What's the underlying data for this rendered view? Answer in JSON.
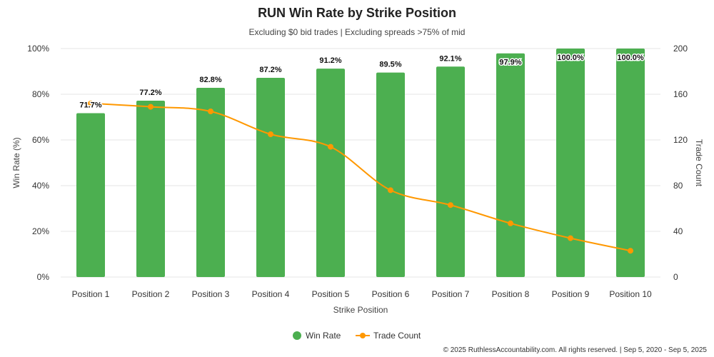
{
  "chart_data": {
    "type": "bar",
    "title": "RUN Win Rate by Strike Position",
    "subtitle": "Excluding $0 bid trades | Excluding spreads >75% of mid",
    "xlabel": "Strike Position",
    "ylabel": "Win Rate (%)",
    "y2label": "Trade Count",
    "ylim": [
      0,
      100
    ],
    "y2lim": [
      0,
      200
    ],
    "yticks": [
      "0%",
      "20%",
      "40%",
      "60%",
      "80%",
      "100%"
    ],
    "y2ticks": [
      "0",
      "40",
      "80",
      "120",
      "160",
      "200"
    ],
    "categories": [
      "Position 1",
      "Position 2",
      "Position 3",
      "Position 4",
      "Position 5",
      "Position 6",
      "Position 7",
      "Position 8",
      "Position 9",
      "Position 10"
    ],
    "series": [
      {
        "name": "Win Rate",
        "type": "bar",
        "axis": "left",
        "color": "#4caf50",
        "values": [
          71.7,
          77.2,
          82.8,
          87.2,
          91.2,
          89.5,
          92.1,
          97.9,
          100.0,
          100.0
        ],
        "labels": [
          "71.7%",
          "77.2%",
          "82.8%",
          "87.2%",
          "91.2%",
          "89.5%",
          "92.1%",
          "97.9%",
          "100.0%",
          "100.0%"
        ]
      },
      {
        "name": "Trade Count",
        "type": "line",
        "axis": "right",
        "color": "#ff9800",
        "values": [
          152,
          149,
          145,
          125,
          114,
          76,
          63,
          47,
          34,
          23
        ]
      }
    ],
    "legend_position": "bottom",
    "grid": true
  },
  "footer": "© 2025 RuthlessAccountability.com. All rights reserved. | Sep 5, 2020 - Sep 5, 2025"
}
